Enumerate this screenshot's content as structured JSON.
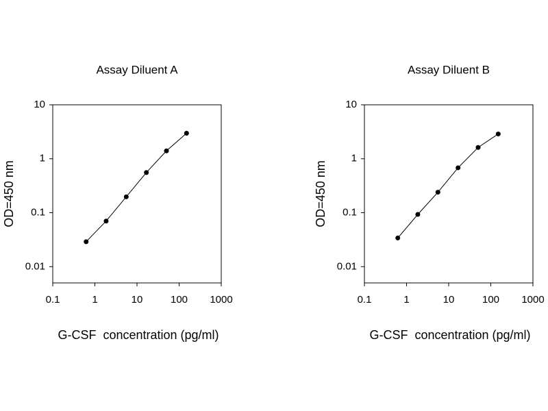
{
  "chart_data": [
    {
      "type": "line",
      "title": "Assay Diluent A",
      "xlabel": "G-CSF  concentration (pg/ml)",
      "ylabel": "OD=450 nm",
      "xscale": "log",
      "yscale": "log",
      "xlim": [
        0.1,
        1000
      ],
      "ylim": [
        0.005,
        10
      ],
      "xticks": [
        0.1,
        1,
        10,
        100,
        1000
      ],
      "yticks": [
        0.01,
        0.1,
        1,
        10
      ],
      "series": [
        {
          "color": "#000000",
          "x": [
            0.62,
            1.85,
            5.56,
            16.7,
            50,
            150
          ],
          "values": [
            0.029,
            0.07,
            0.197,
            0.556,
            1.4,
            2.97
          ]
        }
      ]
    },
    {
      "type": "line",
      "title": "Assay Diluent B",
      "xlabel": "G-CSF  concentration (pg/ml)",
      "ylabel": "OD=450 nm",
      "xscale": "log",
      "yscale": "log",
      "xlim": [
        0.1,
        1000
      ],
      "ylim": [
        0.005,
        10
      ],
      "xticks": [
        0.1,
        1,
        10,
        100,
        1000
      ],
      "yticks": [
        0.01,
        0.1,
        1,
        10
      ],
      "series": [
        {
          "color": "#000000",
          "x": [
            0.62,
            1.85,
            5.56,
            16.7,
            50,
            150
          ],
          "values": [
            0.034,
            0.093,
            0.24,
            0.68,
            1.62,
            2.88
          ]
        }
      ]
    }
  ]
}
